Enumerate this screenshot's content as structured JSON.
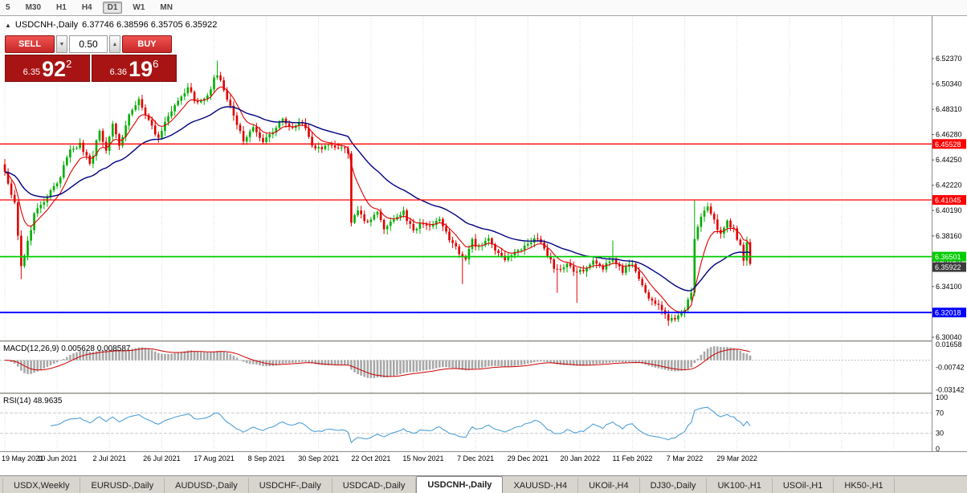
{
  "toolbar": {
    "timeframes": [
      "5",
      "M30",
      "H1",
      "H4",
      "D1",
      "W1",
      "MN"
    ],
    "active": "D1"
  },
  "chart": {
    "collapse_icon": "▲",
    "symbol_period": "USDCNH-,Daily",
    "ohlc_text": "6.37746 6.38596 6.35705 6.35922"
  },
  "trade_panel": {
    "sell_label": "SELL",
    "buy_label": "BUY",
    "volume": "0.50",
    "step_down_icon": "▼",
    "step_up_icon": "▲",
    "sell_price_small": "6.35",
    "sell_price_big": "92",
    "sell_price_sup": "2",
    "buy_price_small": "6.36",
    "buy_price_big": "19",
    "buy_price_sup": "6"
  },
  "indicators": {
    "macd_label": "MACD(12,26,9) 0.005628 0.008587",
    "rsi_label": "RSI(14) 48.9635"
  },
  "chart_data": {
    "type": "candlestick",
    "symbol": "USDCNH-",
    "period": "Daily",
    "ohlc_display": {
      "open": "6.37746",
      "high": "6.38596",
      "low": "6.35705",
      "close": "6.35922"
    },
    "price_axis_ticks": [
      6.5237,
      6.5034,
      6.4831,
      6.4628,
      6.4425,
      6.4222,
      6.4019,
      6.3816,
      6.3613,
      6.341,
      6.3207,
      6.3004
    ],
    "price_axis_top": 6.5578,
    "price_axis_bottom": 6.2978,
    "hlines": [
      {
        "value": 6.45528,
        "color": "#ff0000",
        "label": "6.45528",
        "width": 1.3
      },
      {
        "value": 6.41045,
        "color": "#ff0000",
        "label": "6.41045",
        "width": 1.3
      },
      {
        "value": 6.36501,
        "color": "#00cc00",
        "label": "6.36501",
        "width": 1.8
      },
      {
        "value": 6.32018,
        "color": "#0000ff",
        "label": "6.32018",
        "width": 1.8
      }
    ],
    "current_price": {
      "value": 6.35922,
      "label": "6.35922",
      "bg": "#3c3c3c"
    },
    "dates": [
      "19 May 2021",
      "10 Jun 2021",
      "2 Jul 2021",
      "26 Jul 2021",
      "17 Aug 2021",
      "8 Sep 2021",
      "30 Sep 2021",
      "22 Oct 2021",
      "15 Nov 2021",
      "7 Dec 2021",
      "29 Dec 2021",
      "20 Jan 2022",
      "11 Feb 2022",
      "7 Mar 2022",
      "29 Mar 2022"
    ],
    "candles_per_date_tick": 16,
    "candle_count": 229,
    "price_waypoints": [
      [
        0,
        6.433
      ],
      [
        3,
        6.408
      ],
      [
        5,
        6.358
      ],
      [
        9,
        6.398
      ],
      [
        13,
        6.412
      ],
      [
        17,
        6.43
      ],
      [
        20,
        6.449
      ],
      [
        23,
        6.456
      ],
      [
        26,
        6.438
      ],
      [
        29,
        6.466
      ],
      [
        31,
        6.452
      ],
      [
        33,
        6.47
      ],
      [
        35,
        6.453
      ],
      [
        38,
        6.478
      ],
      [
        41,
        6.489
      ],
      [
        44,
        6.476
      ],
      [
        47,
        6.459
      ],
      [
        50,
        6.478
      ],
      [
        53,
        6.492
      ],
      [
        56,
        6.499
      ],
      [
        59,
        6.487
      ],
      [
        62,
        6.495
      ],
      [
        65,
        6.512
      ],
      [
        67,
        6.497
      ],
      [
        70,
        6.479
      ],
      [
        73,
        6.459
      ],
      [
        76,
        6.468
      ],
      [
        79,
        6.458
      ],
      [
        82,
        6.463
      ],
      [
        85,
        6.476
      ],
      [
        88,
        6.468
      ],
      [
        91,
        6.472
      ],
      [
        94,
        6.456
      ],
      [
        97,
        6.449
      ],
      [
        99,
        6.456
      ],
      [
        102,
        6.452
      ],
      [
        105,
        6.449
      ],
      [
        106,
        6.393
      ],
      [
        108,
        6.403
      ],
      [
        111,
        6.392
      ],
      [
        114,
        6.402
      ],
      [
        116,
        6.386
      ],
      [
        119,
        6.396
      ],
      [
        122,
        6.4
      ],
      [
        125,
        6.384
      ],
      [
        128,
        6.393
      ],
      [
        130,
        6.389
      ],
      [
        133,
        6.393
      ],
      [
        136,
        6.379
      ],
      [
        139,
        6.369
      ],
      [
        141,
        6.363
      ],
      [
        143,
        6.377
      ],
      [
        145,
        6.373
      ],
      [
        148,
        6.379
      ],
      [
        151,
        6.367
      ],
      [
        154,
        6.363
      ],
      [
        157,
        6.369
      ],
      [
        160,
        6.373
      ],
      [
        163,
        6.381
      ],
      [
        166,
        6.366
      ],
      [
        169,
        6.353
      ],
      [
        172,
        6.359
      ],
      [
        175,
        6.353
      ],
      [
        177,
        6.355
      ],
      [
        180,
        6.363
      ],
      [
        183,
        6.355
      ],
      [
        186,
        6.363
      ],
      [
        189,
        6.353
      ],
      [
        192,
        6.359
      ],
      [
        194,
        6.346
      ],
      [
        197,
        6.333
      ],
      [
        200,
        6.327
      ],
      [
        203,
        6.313
      ],
      [
        206,
        6.317
      ],
      [
        208,
        6.323
      ],
      [
        210,
        6.336
      ],
      [
        211,
        6.378
      ],
      [
        213,
        6.398
      ],
      [
        215,
        6.403
      ],
      [
        217,
        6.393
      ],
      [
        219,
        6.383
      ],
      [
        221,
        6.393
      ],
      [
        223,
        6.388
      ],
      [
        225,
        6.373
      ],
      [
        226,
        6.363
      ],
      [
        227,
        6.377
      ],
      [
        228,
        6.35922
      ]
    ],
    "wick_overrides": [
      {
        "i": 5,
        "low": 6.347
      },
      {
        "i": 65,
        "high": 6.522
      },
      {
        "i": 140,
        "low": 6.343
      },
      {
        "i": 169,
        "low": 6.336
      },
      {
        "i": 175,
        "low": 6.328
      },
      {
        "i": 186,
        "high": 6.378
      },
      {
        "i": 211,
        "high": 6.41
      },
      {
        "i": 227,
        "high": 6.381
      }
    ],
    "ma_lines": [
      {
        "period": 8,
        "color": "#dd0000"
      },
      {
        "period": 32,
        "color": "#000080"
      }
    ],
    "macd": {
      "fast": 12,
      "slow": 26,
      "signal": 9,
      "display_values": [
        "0.005628",
        "0.008587"
      ],
      "axis_ticks": [
        0.01658,
        -0.00742,
        -0.03142
      ],
      "scale_top": 0.0185,
      "scale_bottom": -0.0345
    },
    "rsi": {
      "period": 14,
      "value": 48.9635,
      "axis_ticks": [
        100,
        70,
        30,
        0
      ],
      "levels": [
        70,
        30
      ]
    },
    "colors": {
      "bull": "#00ad00",
      "bear": "#e00000",
      "grid": "#dcdcdc",
      "macd_hist": "#a8a8a8",
      "macd_signal": "#cc0000",
      "rsi_line": "#4f9fd8",
      "axis_text": "#000000"
    }
  },
  "tabs": {
    "items": [
      "USDX,Weekly",
      "EURUSD-,Daily",
      "AUDUSD-,Daily",
      "USDCHF-,Daily",
      "USDCAD-,Daily",
      "USDCNH-,Daily",
      "XAUUSD-,H4",
      "UKOil-,H4",
      "DJ30-,Daily",
      "UK100-,H1",
      "USOil-,H1",
      "HK50-,H1"
    ],
    "active_index": 5
  }
}
